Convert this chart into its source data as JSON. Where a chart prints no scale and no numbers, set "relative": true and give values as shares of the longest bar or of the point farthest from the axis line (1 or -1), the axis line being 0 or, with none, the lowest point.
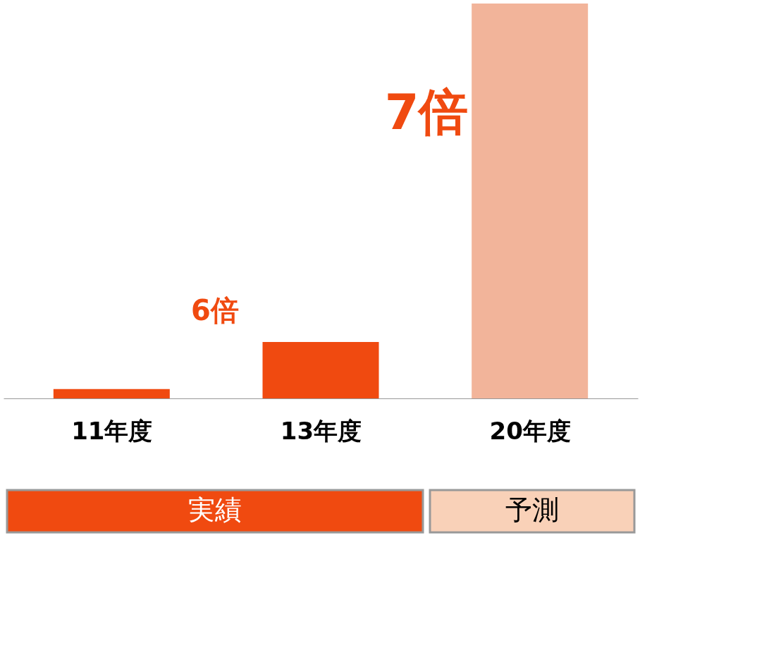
{
  "chart_data": {
    "type": "bar",
    "relative": true,
    "categories": [
      "11年度",
      "13年度",
      "20年度"
    ],
    "values": [
      0.0238,
      0.1429,
      1
    ],
    "colors": [
      "#f04a10",
      "#f04a10",
      "#f2b49a"
    ],
    "annotations": [
      "6倍",
      "7倍",
      "実績",
      "予測"
    ],
    "grid": false
  }
}
